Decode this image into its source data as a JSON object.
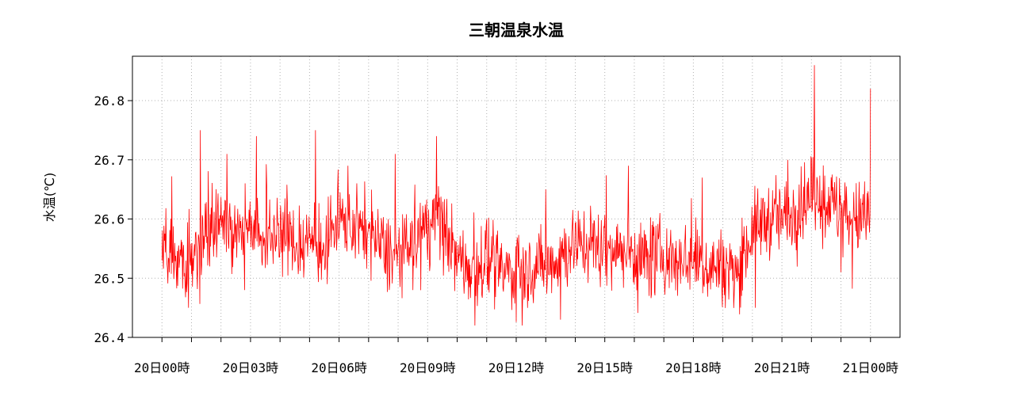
{
  "chart_data": {
    "type": "line",
    "title": "三朝温泉水温",
    "xlabel": "",
    "ylabel": "水温(℃)",
    "ylim": [
      26.4,
      26.875
    ],
    "xlim_hours": [
      -1,
      25
    ],
    "yticks": [
      26.4,
      26.5,
      26.6,
      26.7,
      26.8
    ],
    "ytick_labels": [
      "26.4",
      "26.5",
      "26.6",
      "26.7",
      "26.8"
    ],
    "xticks_labeled_hours": [
      0,
      3,
      6,
      9,
      12,
      15,
      18,
      21,
      24
    ],
    "xtick_labels": [
      "20日00時",
      "20日03時",
      "20日06時",
      "20日09時",
      "20日12時",
      "20日15時",
      "20日18時",
      "20日21時",
      "21日00時"
    ],
    "xticks_minor_hours": [
      1,
      2,
      4,
      5,
      7,
      8,
      10,
      11,
      13,
      14,
      16,
      17,
      19,
      20,
      22,
      23
    ],
    "grid": true,
    "legend": "none",
    "colors": {
      "series": "#ff0000",
      "grid": "#b0b0b0",
      "axes": "#000000"
    },
    "series": [
      {
        "x_hours": [
          0,
          0.5,
          1,
          1.5,
          2,
          2.5,
          3,
          3.5,
          4,
          4.5,
          5,
          5.5,
          6,
          6.5,
          7,
          7.5,
          8,
          8.5,
          9,
          9.5,
          10,
          10.5,
          11,
          11.5,
          12,
          12.5,
          13,
          13.5,
          14,
          14.5,
          15,
          15.5,
          16,
          16.5,
          17,
          17.5,
          18,
          18.5,
          19,
          19.5,
          20,
          20.5,
          21,
          21.5,
          22,
          22.5,
          23,
          23.5,
          24
        ],
        "values": [
          26.56,
          26.54,
          26.53,
          26.58,
          26.6,
          26.57,
          26.6,
          26.56,
          26.58,
          26.56,
          26.56,
          26.55,
          26.6,
          26.58,
          26.58,
          26.55,
          26.53,
          26.56,
          26.59,
          26.6,
          26.53,
          26.52,
          26.53,
          26.51,
          26.51,
          26.52,
          26.52,
          26.54,
          26.56,
          26.56,
          26.55,
          26.55,
          26.54,
          26.53,
          26.54,
          26.53,
          26.54,
          26.52,
          26.52,
          26.51,
          26.58,
          26.6,
          26.6,
          26.62,
          26.64,
          26.63,
          26.61,
          26.6,
          26.6
        ],
        "min_hours": [
          0,
          0.9,
          2.8,
          5.6,
          8.5,
          10.6,
          12.2,
          13.5,
          16.5,
          20.1,
          23.0
        ],
        "min_values": [
          26.53,
          26.45,
          26.48,
          26.49,
          26.48,
          26.42,
          26.42,
          26.43,
          26.47,
          26.45,
          26.51
        ],
        "max_hours": [
          1.3,
          2.2,
          3.2,
          5.2,
          6.3,
          7.9,
          9.3,
          13.0,
          15.8,
          18.3,
          21.2,
          22.1,
          24.0
        ],
        "max_values": [
          26.75,
          26.71,
          26.74,
          26.75,
          26.69,
          26.71,
          26.74,
          26.65,
          26.69,
          26.67,
          26.7,
          26.86,
          26.82
        ]
      }
    ]
  }
}
